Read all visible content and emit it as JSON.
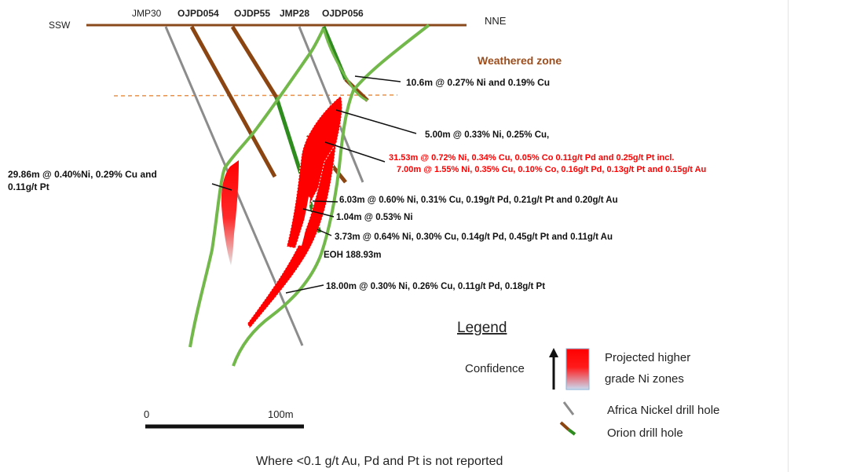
{
  "orientation": {
    "left": "SSW",
    "right": "NNE"
  },
  "holes": [
    "JMP30",
    "OJPD054",
    "OJDP55",
    "JMP28",
    "OJDP056"
  ],
  "zone_label": "Weathered zone",
  "intercepts": {
    "i1": "10.6m @ 0.27% Ni and 0.19% Cu",
    "i2": "5.00m @ 0.33% Ni, 0.25% Cu,",
    "i3a": "31.53m @ 0.72% Ni, 0.34% Cu, 0.05% Co 0.11g/t Pd and 0.25g/t Pt incl.",
    "i3b": "7.00m @ 1.55% Ni, 0.35% Cu, 0.10% Co, 0.16g/t Pd, 0.13g/t Pt and 0.15g/t Au",
    "i4a": "29.86m @ 0.40%Ni, 0.29% Cu and",
    "i4b": "0.11g/t Pt",
    "i5": "6.03m @ 0.60% Ni, 0.31% Cu, 0.19g/t Pd, 0.21g/t Pt and 0.20g/t Au",
    "i6": "1.04m @ 0.53% Ni",
    "i7": "3.73m @ 0.64% Ni, 0.30% Cu, 0.14g/t Pd, 0.45g/t Pt and 0.11g/t Au",
    "eoh": "EOH 188.93m",
    "i8": "18.00m @ 0.30% Ni, 0.26% Cu, 0.11g/t Pd, 0.18g/t Pt"
  },
  "legend": {
    "title": "Legend",
    "confidence": "Confidence",
    "projected_1": "Projected higher",
    "projected_2": "grade Ni zones",
    "africa": "Africa Nickel drill hole",
    "orion": "Orion drill hole"
  },
  "scale": {
    "start": "0",
    "end": "100m"
  },
  "footnote": "Where <0.1 g/t Au, Pd and Pt is not reported",
  "colors": {
    "surface": "#8b4a1c",
    "zone_text": "#9c4e1e",
    "orion_brown": "#8b4513",
    "orion_green": "#2e8b1e",
    "africa_grey": "#8c8c8c",
    "contact_green": "#72b84a",
    "ore_red": "#ff0000",
    "highlight_text": "#ff0000"
  }
}
